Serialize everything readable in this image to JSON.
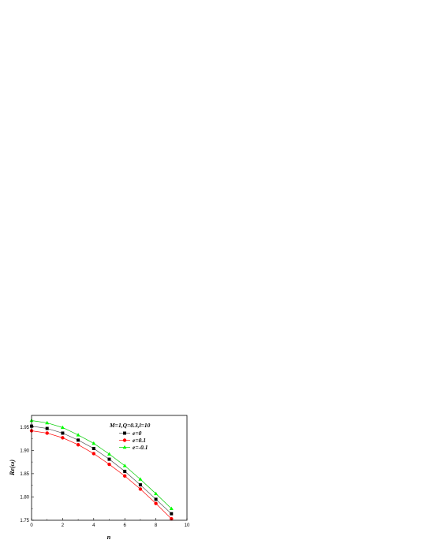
{
  "chart_data": {
    "type": "line",
    "title": "",
    "xlabel": "n",
    "ylabel": "Re(ω)",
    "xlim": [
      0,
      10
    ],
    "ylim": [
      1.75,
      1.975
    ],
    "x_ticks": [
      0,
      2,
      4,
      6,
      8,
      10
    ],
    "x_tick_labels": [
      "0",
      "2",
      "4",
      "6",
      "8",
      "10"
    ],
    "y_ticks": [
      1.75,
      1.8,
      1.85,
      1.9,
      1.95
    ],
    "y_tick_labels": [
      "1.75",
      "1.80",
      "1.85",
      "1.90",
      "1.95"
    ],
    "grid": false,
    "legend_title": "M=1,Q=0.3,l=10",
    "legend_position": "top-right",
    "x": [
      0,
      1,
      2,
      3,
      4,
      5,
      6,
      7,
      8,
      9
    ],
    "series": [
      {
        "name": "e=0",
        "marker": "square",
        "color": "#000000",
        "line_color": "#555555",
        "values": [
          1.952,
          1.947,
          1.937,
          1.922,
          1.904,
          1.881,
          1.855,
          1.826,
          1.795,
          1.764
        ]
      },
      {
        "name": "e=0.1",
        "marker": "circle",
        "color": "#ff0000",
        "line_color": "#ff0000",
        "values": [
          1.942,
          1.937,
          1.927,
          1.912,
          1.893,
          1.87,
          1.845,
          1.817,
          1.786,
          1.753
        ]
      },
      {
        "name": "e=-0.1",
        "marker": "triangle",
        "color": "#00ff00",
        "line_color": "#00cc00",
        "values": [
          1.964,
          1.959,
          1.949,
          1.933,
          1.915,
          1.892,
          1.867,
          1.838,
          1.807,
          1.775
        ]
      }
    ]
  }
}
